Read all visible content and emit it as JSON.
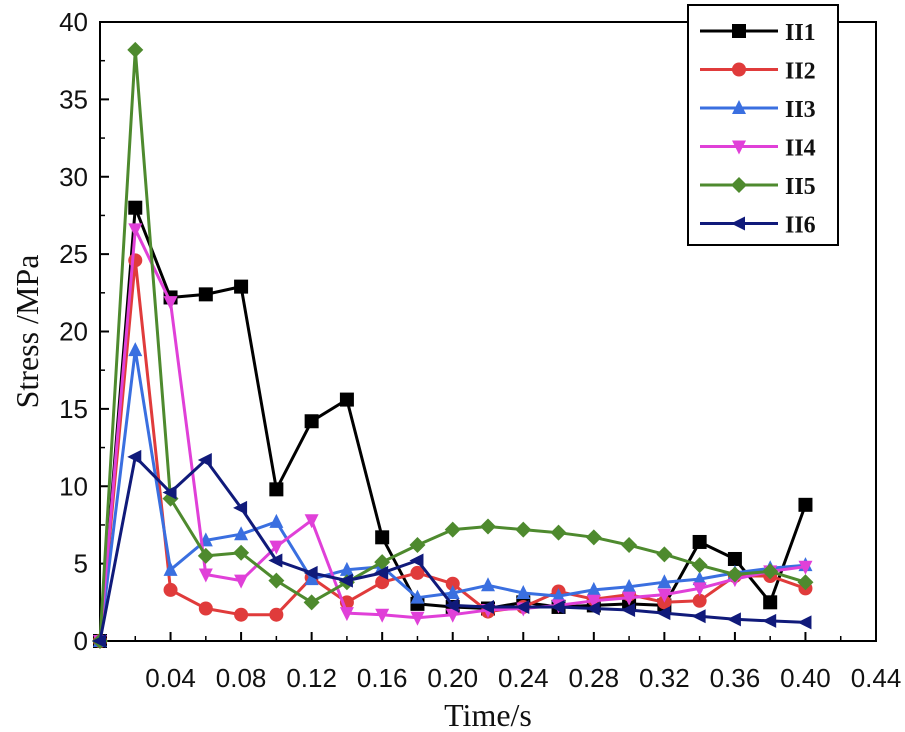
{
  "chart_data": {
    "type": "line",
    "xlabel": "Time/s",
    "ylabel": "Stress /MPa",
    "xlim": [
      0,
      0.44
    ],
    "ylim": [
      0,
      40
    ],
    "x_ticks": [
      0.04,
      0.08,
      0.12,
      0.16,
      0.2,
      0.24,
      0.28,
      0.32,
      0.36,
      0.4,
      0.44
    ],
    "x_tick_labels": [
      "0.04",
      "0.08",
      "0.12",
      "0.16",
      "0.20",
      "0.24",
      "0.28",
      "0.32",
      "0.36",
      "0.40",
      "0.44"
    ],
    "y_ticks": [
      0,
      5,
      10,
      15,
      20,
      25,
      30,
      35,
      40
    ],
    "y_tick_labels": [
      "0",
      "5",
      "10",
      "15",
      "20",
      "25",
      "30",
      "35",
      "40"
    ],
    "grid": false,
    "legend_position": "top-right",
    "series": [
      {
        "name": "II1",
        "color": "#000000",
        "marker": "square",
        "x": [
          0,
          0.02,
          0.04,
          0.06,
          0.08,
          0.1,
          0.12,
          0.14,
          0.16,
          0.18,
          0.2,
          0.22,
          0.24,
          0.26,
          0.28,
          0.3,
          0.32,
          0.34,
          0.36,
          0.38,
          0.4
        ],
        "values": [
          0,
          28.0,
          22.2,
          22.4,
          22.9,
          9.8,
          14.2,
          15.6,
          6.7,
          2.4,
          2.2,
          2.1,
          2.5,
          2.2,
          2.3,
          2.4,
          2.3,
          6.4,
          5.3,
          2.5,
          8.8
        ]
      },
      {
        "name": "II2",
        "color": "#e03b3b",
        "marker": "circle",
        "x": [
          0,
          0.02,
          0.04,
          0.06,
          0.08,
          0.1,
          0.12,
          0.14,
          0.16,
          0.18,
          0.2,
          0.22,
          0.24,
          0.26,
          0.28,
          0.3,
          0.32,
          0.34,
          0.36,
          0.38,
          0.4
        ],
        "values": [
          0,
          24.6,
          3.3,
          2.1,
          1.7,
          1.7,
          4.1,
          2.5,
          3.8,
          4.4,
          3.7,
          1.9,
          2.2,
          3.2,
          2.7,
          3.0,
          2.5,
          2.6,
          4.2,
          4.2,
          3.4
        ]
      },
      {
        "name": "II3",
        "color": "#3a6fe0",
        "marker": "triangle-up",
        "x": [
          0,
          0.02,
          0.04,
          0.06,
          0.08,
          0.1,
          0.12,
          0.14,
          0.16,
          0.18,
          0.2,
          0.22,
          0.24,
          0.26,
          0.28,
          0.3,
          0.32,
          0.34,
          0.36,
          0.38,
          0.4
        ],
        "values": [
          0,
          18.8,
          4.6,
          6.5,
          6.9,
          7.7,
          4.0,
          4.6,
          4.8,
          2.8,
          3.1,
          3.6,
          3.1,
          2.9,
          3.3,
          3.5,
          3.8,
          4.0,
          4.4,
          4.7,
          4.9
        ]
      },
      {
        "name": "II4",
        "color": "#e040d8",
        "marker": "triangle-down",
        "x": [
          0,
          0.02,
          0.04,
          0.06,
          0.08,
          0.1,
          0.12,
          0.14,
          0.16,
          0.18,
          0.2,
          0.22,
          0.24,
          0.26,
          0.28,
          0.3,
          0.32,
          0.34,
          0.36,
          0.38,
          0.4
        ],
        "values": [
          0,
          26.6,
          21.9,
          4.3,
          3.9,
          6.1,
          7.8,
          1.8,
          1.7,
          1.5,
          1.7,
          2.0,
          2.1,
          2.3,
          2.6,
          2.8,
          3.0,
          3.4,
          4.0,
          4.5,
          4.8
        ]
      },
      {
        "name": "II5",
        "color": "#4e8a2e",
        "marker": "diamond",
        "x": [
          0,
          0.02,
          0.04,
          0.06,
          0.08,
          0.1,
          0.12,
          0.14,
          0.16,
          0.18,
          0.2,
          0.22,
          0.24,
          0.26,
          0.28,
          0.3,
          0.32,
          0.34,
          0.36,
          0.38,
          0.4
        ],
        "values": [
          0,
          38.2,
          9.2,
          5.5,
          5.7,
          3.9,
          2.5,
          3.8,
          5.1,
          6.2,
          7.2,
          7.4,
          7.2,
          7.0,
          6.7,
          6.2,
          5.6,
          4.9,
          4.3,
          4.5,
          3.8
        ]
      },
      {
        "name": "II6",
        "color": "#101a7a",
        "marker": "triangle-left",
        "x": [
          0,
          0.02,
          0.04,
          0.06,
          0.08,
          0.1,
          0.12,
          0.14,
          0.16,
          0.18,
          0.2,
          0.22,
          0.24,
          0.26,
          0.28,
          0.3,
          0.32,
          0.34,
          0.36,
          0.38,
          0.4
        ],
        "values": [
          0,
          11.9,
          9.6,
          11.7,
          8.6,
          5.2,
          4.4,
          3.9,
          4.4,
          5.2,
          2.3,
          2.2,
          2.2,
          2.2,
          2.1,
          2.0,
          1.8,
          1.6,
          1.4,
          1.3,
          1.2
        ]
      }
    ]
  }
}
